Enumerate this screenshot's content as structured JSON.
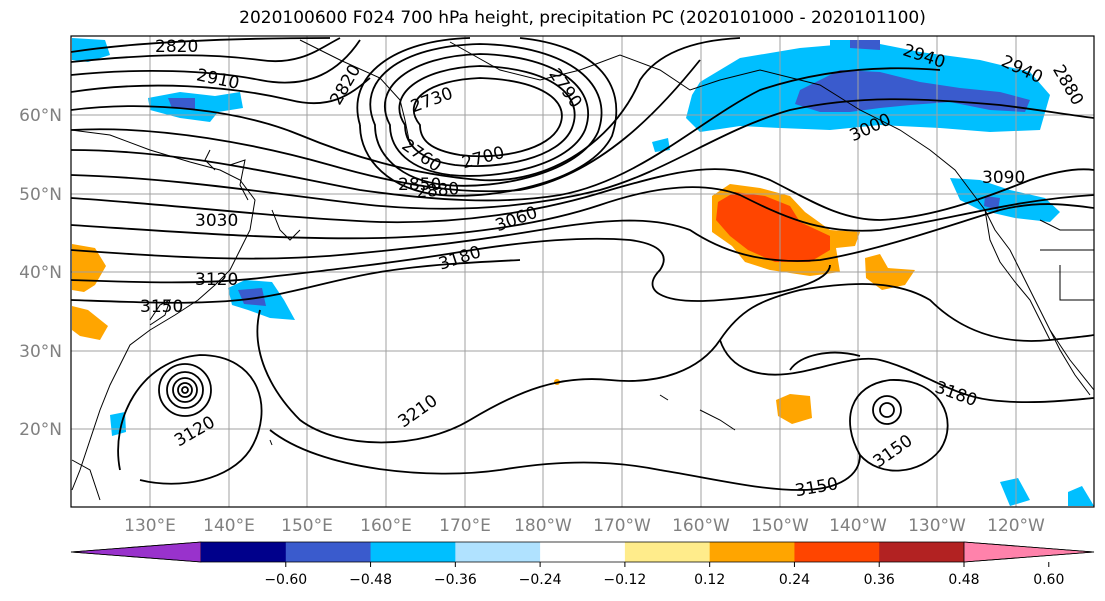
{
  "title": "2020100600 F024 700 hPa height, precipitation PC (2020101000 - 2020101100)",
  "map": {
    "lat_labels": [
      "60°N",
      "50°N",
      "40°N",
      "30°N",
      "20°N"
    ],
    "lon_labels": [
      "130°E",
      "140°E",
      "150°E",
      "160°E",
      "170°E",
      "180°W",
      "170°W",
      "160°W",
      "150°W",
      "140°W",
      "130°W",
      "120°W"
    ],
    "contour_labels": [
      "2820",
      "2820",
      "2910",
      "2730",
      "2790",
      "2760",
      "2700",
      "2850",
      "2880",
      "3030",
      "3060",
      "3180",
      "3120",
      "3150",
      "3210",
      "3120",
      "3150",
      "2940",
      "2940",
      "2880",
      "3000",
      "3090",
      "3180",
      "3150"
    ],
    "colors": {
      "contour": "#000000",
      "coast": "#000000",
      "grid": "#a0a0a0",
      "label": "#808080"
    }
  },
  "colorbar": {
    "ticks": [
      "−0.60",
      "−0.48",
      "−0.36",
      "−0.24",
      "−0.12",
      "0.12",
      "0.24",
      "0.36",
      "0.48",
      "0.60"
    ],
    "colors": [
      "#9932cc",
      "#00008b",
      "#3a5bcd",
      "#00bfff",
      "#b0e2ff",
      "#ffffff",
      "#ffec8b",
      "#ffa500",
      "#ff4500",
      "#b22222",
      "#ff82ab"
    ]
  }
}
